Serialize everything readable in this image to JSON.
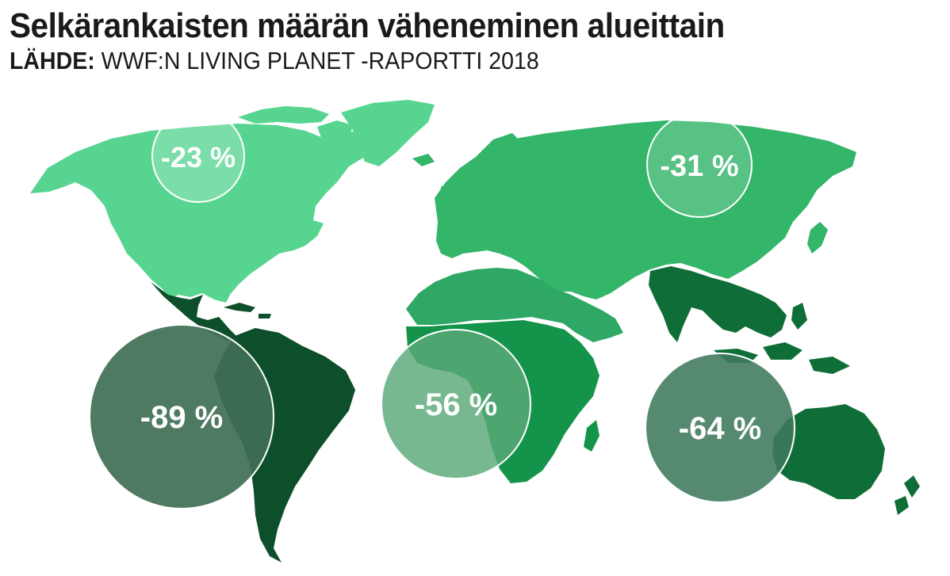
{
  "title": "Selkärankaisten määrän väheneminen alueittain",
  "source": {
    "label": "LÄHDE:",
    "text": "WWF:N LIVING PLANET -RAPORTTI 2018"
  },
  "regions": [
    {
      "id": "north-america",
      "value": "-23 %",
      "color": "#57d590"
    },
    {
      "id": "europe-central-asia",
      "value": "-31 %",
      "color": "#33b56a"
    },
    {
      "id": "latin-america",
      "value": "-89 %",
      "color": "#0d4f2b"
    },
    {
      "id": "africa",
      "value": "-56 %",
      "color": "#14944a"
    },
    {
      "id": "asia-pacific",
      "value": "-64 %",
      "color": "#0f6e38"
    }
  ],
  "colors": {
    "middle-east": "#2ea864",
    "circle-light": "#ffffff",
    "circle-dark": "#3f6f55"
  }
}
